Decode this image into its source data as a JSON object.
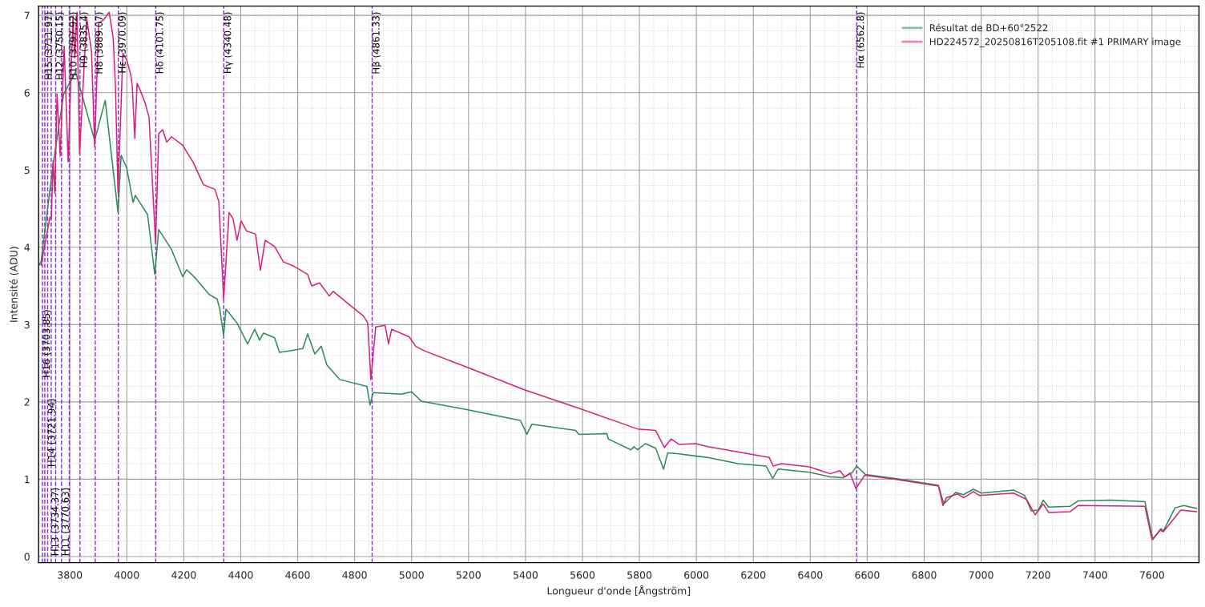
{
  "chart_data": {
    "type": "line",
    "xlabel": "Longueur d'onde [Ångström]",
    "ylabel": "Intensité (ADU)",
    "xlim": [
      3690,
      7765
    ],
    "ylim": [
      -0.08,
      7.12
    ],
    "xticks": [
      3800,
      4000,
      4200,
      4400,
      4600,
      4800,
      5000,
      5200,
      5400,
      5600,
      5800,
      6000,
      6200,
      6400,
      6600,
      6800,
      7000,
      7200,
      7400,
      7600
    ],
    "yticks": [
      0,
      1,
      2,
      3,
      4,
      5,
      6,
      7
    ],
    "grid": true,
    "legend": "top right",
    "marker": "none",
    "line_style": "solid",
    "series": [
      {
        "name": "Résultat de BD+60°2522",
        "color": "#2e8b57",
        "x": [
          3693,
          3699,
          3741,
          3761,
          3778,
          3820,
          3887,
          3924,
          3969,
          3980,
          4000,
          4022,
          4030,
          4073,
          4098,
          4112,
          4157,
          4196,
          4210,
          4241,
          4289,
          4317,
          4326,
          4340,
          4348,
          4387,
          4424,
          4449,
          4466,
          4480,
          4519,
          4536,
          4570,
          4618,
          4635,
          4660,
          4683,
          4702,
          4747,
          4843,
          4854,
          4865,
          4964,
          5000,
          5034,
          5194,
          5287,
          5382,
          5405,
          5422,
          5576,
          5587,
          5686,
          5691,
          5770,
          5781,
          5793,
          5821,
          5857,
          5885,
          5899,
          5933,
          6040,
          6147,
          6245,
          6268,
          6287,
          6397,
          6470,
          6515,
          6546,
          6563,
          6594,
          6698,
          6850,
          6869,
          6911,
          6937,
          6973,
          7001,
          7114,
          7153,
          7176,
          7201,
          7218,
          7237,
          7313,
          7341,
          7457,
          7575,
          7603,
          7631,
          7640,
          7681,
          7712,
          7757
        ],
        "values": [
          3.77,
          3.82,
          5.07,
          5.56,
          5.98,
          6.27,
          5.38,
          5.9,
          4.45,
          5.19,
          5.02,
          4.58,
          4.67,
          4.42,
          3.65,
          4.23,
          3.97,
          3.62,
          3.71,
          3.6,
          3.39,
          3.33,
          3.21,
          2.86,
          3.2,
          3.02,
          2.75,
          2.94,
          2.8,
          2.89,
          2.83,
          2.64,
          2.66,
          2.69,
          2.88,
          2.62,
          2.72,
          2.48,
          2.29,
          2.2,
          1.96,
          2.12,
          2.1,
          2.13,
          2.01,
          1.9,
          1.83,
          1.76,
          1.58,
          1.71,
          1.63,
          1.58,
          1.59,
          1.52,
          1.38,
          1.42,
          1.38,
          1.46,
          1.4,
          1.13,
          1.34,
          1.33,
          1.28,
          1.2,
          1.17,
          1.01,
          1.13,
          1.09,
          1.03,
          1.02,
          1.08,
          1.17,
          1.06,
          1.01,
          0.92,
          0.68,
          0.83,
          0.8,
          0.87,
          0.82,
          0.86,
          0.79,
          0.59,
          0.6,
          0.73,
          0.64,
          0.65,
          0.72,
          0.73,
          0.71,
          0.22,
          0.36,
          0.33,
          0.63,
          0.66,
          0.62
        ]
      },
      {
        "name": "HD224572_20250816T205108.fit #1 PRIMARY image",
        "color": "#d6207f",
        "x": [
          3699,
          3730,
          3735,
          3741,
          3747,
          3755,
          3766,
          3780,
          3794,
          3811,
          3817,
          3825,
          3834,
          3859,
          3876,
          3887,
          3901,
          3918,
          3938,
          3952,
          3960,
          3969,
          3986,
          4000,
          4014,
          4019,
          4028,
          4036,
          4045,
          4064,
          4078,
          4101,
          4112,
          4126,
          4140,
          4157,
          4196,
          4233,
          4269,
          4309,
          4323,
          4340,
          4359,
          4373,
          4387,
          4401,
          4421,
          4452,
          4469,
          4486,
          4519,
          4550,
          4584,
          4635,
          4649,
          4677,
          4711,
          4725,
          4787,
          4831,
          4846,
          4857,
          4874,
          4907,
          4919,
          4930,
          4992,
          5014,
          5045,
          5194,
          5394,
          5593,
          5793,
          5857,
          5888,
          5911,
          5939,
          5998,
          6040,
          6256,
          6270,
          6299,
          6397,
          6470,
          6504,
          6521,
          6540,
          6560,
          6591,
          6698,
          6850,
          6866,
          6878,
          6917,
          6939,
          6973,
          6993,
          7114,
          7159,
          7190,
          7218,
          7237,
          7313,
          7341,
          7575,
          7600,
          7629,
          7640,
          7701,
          7757
        ],
        "values": [
          3.77,
          4.39,
          4.37,
          5.12,
          4.7,
          5.98,
          5.18,
          6.6,
          5.1,
          6.99,
          6.45,
          7.04,
          5.21,
          6.97,
          6.53,
          5.3,
          6.9,
          6.94,
          7.04,
          6.71,
          6.09,
          4.7,
          6.51,
          6.42,
          6.23,
          6.09,
          5.41,
          6.12,
          6.05,
          5.87,
          5.68,
          4.05,
          5.47,
          5.52,
          5.36,
          5.43,
          5.32,
          5.1,
          4.81,
          4.75,
          4.59,
          3.33,
          4.45,
          4.37,
          4.09,
          4.34,
          4.21,
          4.17,
          3.7,
          4.09,
          4.01,
          3.81,
          3.76,
          3.65,
          3.5,
          3.54,
          3.37,
          3.43,
          3.24,
          3.11,
          3.02,
          2.29,
          2.97,
          2.99,
          2.75,
          2.94,
          2.84,
          2.72,
          2.66,
          2.45,
          2.16,
          1.91,
          1.65,
          1.63,
          1.41,
          1.52,
          1.45,
          1.46,
          1.42,
          1.28,
          1.17,
          1.2,
          1.16,
          1.07,
          1.11,
          1.03,
          1.08,
          0.88,
          1.05,
          1.0,
          0.91,
          0.66,
          0.76,
          0.81,
          0.76,
          0.84,
          0.79,
          0.82,
          0.74,
          0.54,
          0.68,
          0.57,
          0.58,
          0.66,
          0.65,
          0.22,
          0.34,
          0.32,
          0.6,
          0.58
        ]
      }
    ],
    "ref_lines": [
      {
        "axis": "x",
        "value": 3703.85,
        "label": "H16 (3703.85)",
        "color": "#8a2be2",
        "line_style": "dashed"
      },
      {
        "axis": "x",
        "value": 3711.97,
        "label": "H15 (3711.97)",
        "color": "#8a2be2",
        "line_style": "dashed"
      },
      {
        "axis": "x",
        "value": 3721.94,
        "label": "H14 (3721.94)",
        "color": "#8a2be2",
        "line_style": "dashed"
      },
      {
        "axis": "x",
        "value": 3734.37,
        "label": "H13 (3734.37)",
        "color": "#8a2be2",
        "line_style": "dashed"
      },
      {
        "axis": "x",
        "value": 3750.15,
        "label": "H12 (3750.15)",
        "color": "#8a2be2",
        "line_style": "dashed"
      },
      {
        "axis": "x",
        "value": 3770.63,
        "label": "H11 (3770.63)",
        "color": "#8a2be2",
        "line_style": "dashed"
      },
      {
        "axis": "x",
        "value": 3797.92,
        "label": "H10 (3797.92)",
        "color": "#8a2be2",
        "line_style": "dashed"
      },
      {
        "axis": "x",
        "value": 3835.4,
        "label": "H9 (3835.4)",
        "color": "#8a2be2",
        "line_style": "dashed"
      },
      {
        "axis": "x",
        "value": 3889.07,
        "label": "H8 (3889.07)",
        "color": "#8a2be2",
        "line_style": "dashed"
      },
      {
        "axis": "x",
        "value": 3970.09,
        "label": "Hε (3970.09)",
        "color": "#8a2be2",
        "line_style": "dashed"
      },
      {
        "axis": "x",
        "value": 4101.75,
        "label": "Hδ (4101.75)",
        "color": "#8a2be2",
        "line_style": "dashed"
      },
      {
        "axis": "x",
        "value": 4340.48,
        "label": "Hγ (4340.48)",
        "color": "#8a2be2",
        "line_style": "dashed"
      },
      {
        "axis": "x",
        "value": 4861.33,
        "label": "Hβ (4861.33)",
        "color": "#8a2be2",
        "line_style": "dashed"
      },
      {
        "axis": "x",
        "value": 6562.8,
        "label": "Hα (6562.8)",
        "color": "#8a2be2",
        "line_style": "dashed"
      }
    ]
  }
}
